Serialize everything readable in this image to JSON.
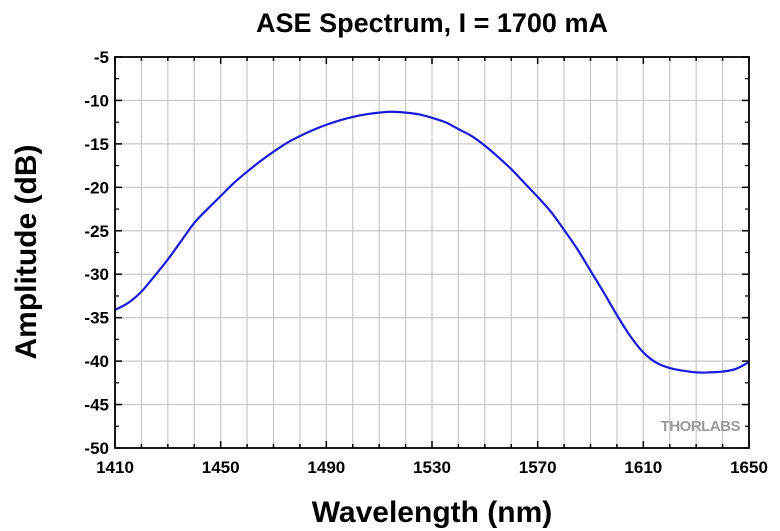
{
  "chart_data": {
    "type": "line",
    "title": "ASE Spectrum, I = 1700 mA",
    "xlabel": "Wavelength (nm)",
    "ylabel": "Amplitude (dB)",
    "xlim": [
      1410,
      1650
    ],
    "ylim": [
      -50,
      -5
    ],
    "xticks": [
      1410,
      1450,
      1490,
      1530,
      1570,
      1610,
      1650
    ],
    "yticks": [
      -5,
      -10,
      -15,
      -20,
      -25,
      -30,
      -35,
      -40,
      -45,
      -50
    ],
    "grid": true,
    "series": [
      {
        "color": "#1a1adb",
        "x": [
          1410,
          1415,
          1420,
          1425,
          1430,
          1435,
          1440,
          1445,
          1450,
          1455,
          1460,
          1465,
          1470,
          1475,
          1480,
          1485,
          1490,
          1495,
          1500,
          1505,
          1510,
          1515,
          1520,
          1525,
          1530,
          1535,
          1540,
          1545,
          1550,
          1555,
          1560,
          1565,
          1570,
          1575,
          1580,
          1585,
          1590,
          1595,
          1600,
          1605,
          1610,
          1615,
          1620,
          1625,
          1630,
          1635,
          1640,
          1645,
          1650
        ],
        "y": [
          -34.1,
          -33.3,
          -32.0,
          -30.2,
          -28.3,
          -26.2,
          -24.1,
          -22.5,
          -21.0,
          -19.5,
          -18.2,
          -17.0,
          -15.9,
          -14.9,
          -14.1,
          -13.4,
          -12.8,
          -12.3,
          -11.9,
          -11.6,
          -11.4,
          -11.3,
          -11.4,
          -11.6,
          -12.0,
          -12.5,
          -13.3,
          -14.1,
          -15.2,
          -16.5,
          -17.9,
          -19.5,
          -21.1,
          -22.8,
          -24.9,
          -27.1,
          -29.6,
          -32.1,
          -34.7,
          -37.1,
          -39.0,
          -40.2,
          -40.8,
          -41.1,
          -41.3,
          -41.3,
          -41.2,
          -40.9,
          -40.1
        ]
      }
    ],
    "watermark": "THORLABS"
  }
}
